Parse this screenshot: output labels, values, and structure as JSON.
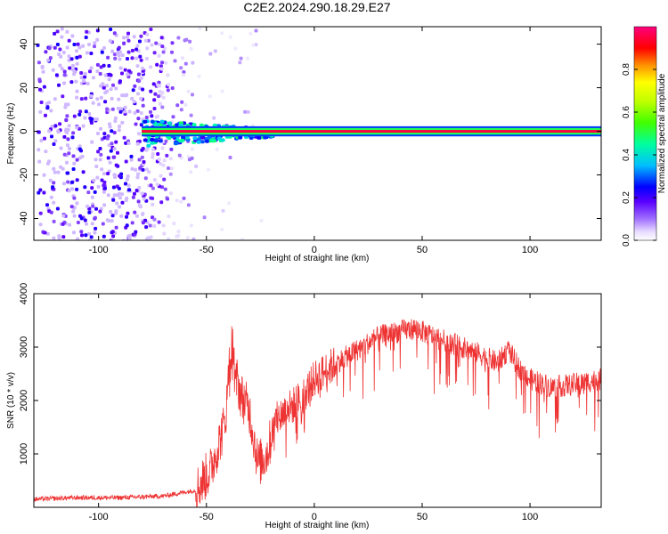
{
  "title": "C2E2.2024.290.18.29.E27",
  "chart_data": [
    {
      "type": "heatmap",
      "xlabel": "Height of straight line (km)",
      "ylabel": "Frequency (Hz)",
      "xlim": [
        -130,
        133
      ],
      "ylim": [
        -50,
        48
      ],
      "x_ticks": [
        -100,
        -50,
        0,
        50,
        100
      ],
      "y_ticks": [
        -40,
        -20,
        0,
        20,
        40
      ],
      "colorbar": {
        "label": "Normalized spectral amplitude",
        "range": [
          0,
          1
        ],
        "ticks": [
          0.0,
          0.2,
          0.4,
          0.6,
          0.8
        ],
        "tick_labels": [
          "0.0",
          "0.2",
          "0.4",
          "0.6",
          "0.8"
        ],
        "colormap": [
          "#ffffff",
          "#cdb4ff",
          "#8a2be2",
          "#5a00ff",
          "#0000ff",
          "#00bfff",
          "#00ff80",
          "#7fff00",
          "#ffff00",
          "#ff8000",
          "#ff0000",
          "#ff0080"
        ]
      },
      "noise_band": {
        "x_range": [
          -130,
          -55
        ],
        "freq_range": [
          -50,
          48
        ],
        "level": 0.12
      },
      "carrier_band": {
        "x_range": [
          -80,
          133
        ],
        "center_freq": 0,
        "halfwidth_hz": 1.5,
        "level": 0.95
      },
      "turbulent_region": {
        "x_range": [
          -80,
          -20
        ],
        "freq_spread_hz": 6,
        "level": 0.35
      }
    },
    {
      "type": "line",
      "xlabel": "Height of straight line (km)",
      "ylabel": "SNR (10 * v/v)",
      "xlim": [
        -130,
        133
      ],
      "ylim": [
        0,
        4000
      ],
      "x_ticks": [
        -100,
        -50,
        0,
        50,
        100
      ],
      "y_ticks": [
        1000,
        2000,
        3000,
        4000
      ],
      "series": [
        {
          "color": "#ee3333",
          "x": [
            -130,
            -110,
            -90,
            -70,
            -55,
            -48,
            -42,
            -38,
            -34,
            -30,
            -26,
            -22,
            -18,
            -14,
            -10,
            -5,
            0,
            10,
            20,
            30,
            40,
            47,
            55,
            65,
            75,
            85,
            90,
            95,
            100,
            110,
            120,
            133
          ],
          "y": [
            150,
            180,
            180,
            210,
            320,
            700,
            1500,
            2700,
            2100,
            1800,
            800,
            1000,
            1600,
            1800,
            1900,
            2100,
            2400,
            2700,
            2950,
            3200,
            3300,
            3350,
            3200,
            3050,
            2900,
            2700,
            2950,
            2600,
            2400,
            2250,
            2300,
            2400
          ]
        }
      ]
    }
  ]
}
